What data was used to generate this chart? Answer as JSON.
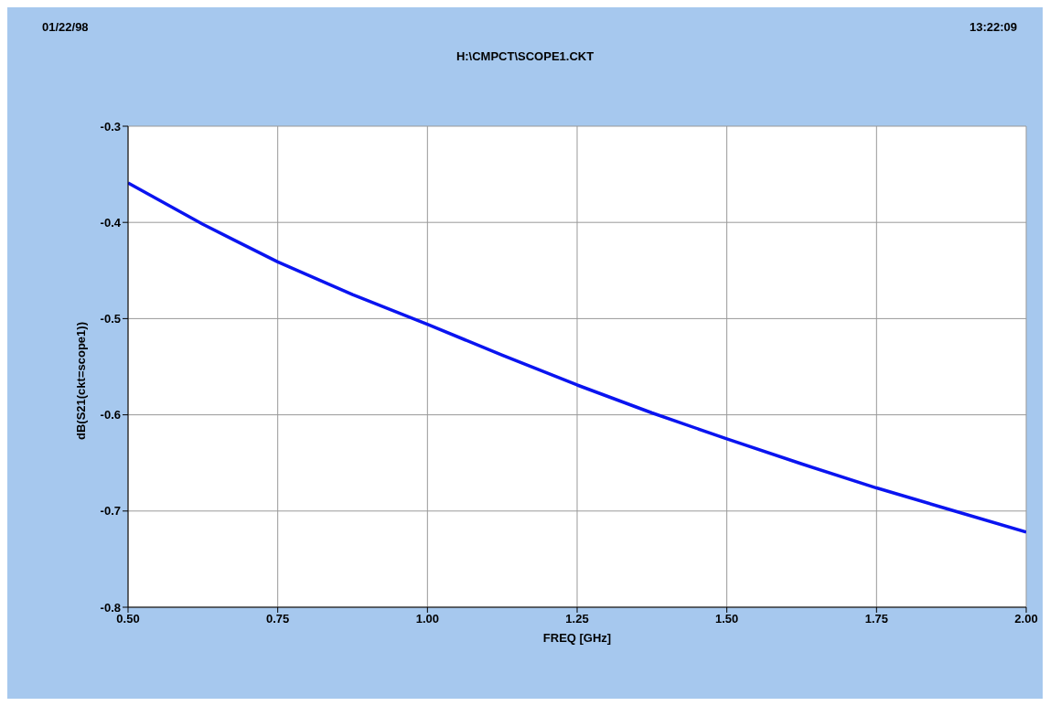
{
  "chart_data": {
    "type": "line",
    "title": "H:\\CMPCT\\SCOPE1.CKT",
    "annotations": [
      "01/22/98",
      "13:22:09"
    ],
    "xlabel": "FREQ [GHz]",
    "ylabel": "dB(S21(ckt=scope1))",
    "x": [
      0.5,
      0.625,
      0.75,
      0.875,
      1.0,
      1.125,
      1.25,
      1.375,
      1.5,
      1.625,
      1.75,
      1.875,
      2.0
    ],
    "series": [
      {
        "color": "#0a14f0",
        "values": [
          -0.359,
          -0.402,
          -0.441,
          -0.475,
          -0.506,
          -0.538,
          -0.569,
          -0.598,
          -0.625,
          -0.651,
          -0.676,
          -0.699,
          -0.722
        ]
      }
    ],
    "xlim": [
      0.5,
      2.0
    ],
    "xticks": [
      {
        "value": 0.5,
        "label": "0.50"
      },
      {
        "value": 0.75,
        "label": "0.75"
      },
      {
        "value": 1.0,
        "label": "1.00"
      },
      {
        "value": 1.25,
        "label": "1.25"
      },
      {
        "value": 1.5,
        "label": "1.50"
      },
      {
        "value": 1.75,
        "label": "1.75"
      },
      {
        "value": 2.0,
        "label": "2.00"
      }
    ],
    "ylim": [
      -0.8,
      -0.3
    ],
    "yticks": [
      -0.8,
      -0.7,
      -0.6,
      -0.5,
      -0.4,
      -0.3
    ],
    "grid": true,
    "legend": false,
    "marker": "none",
    "line_style": "solid"
  }
}
